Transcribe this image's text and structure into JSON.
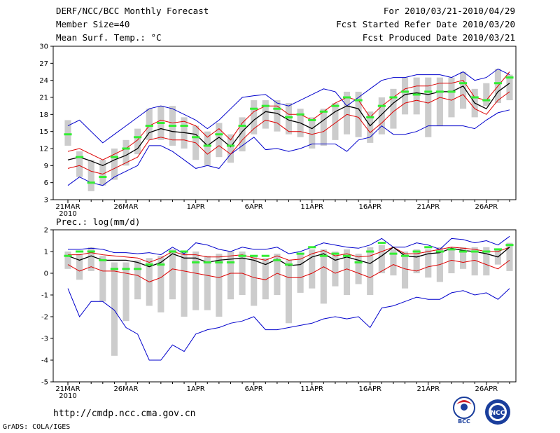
{
  "header": {
    "title": "DERF/NCC/BCC Monthly Forecast",
    "member": "Member Size=40",
    "variable": "Mean Surf. Temp.: °C",
    "period": "For 2010/03/21-2010/04/29",
    "started": "Fcst Started Refer Date 2010/03/20",
    "produced": "Fcst Produced Date 2010/03/21"
  },
  "footer": {
    "url": "http://cmdp.ncc.cma.gov.cn",
    "credit": "GrADS: COLA/IGES",
    "logo_left_text": "BCC",
    "logo_right_text": "NCC"
  },
  "colors": {
    "envelope": "#0000cc",
    "spread": "#dd0000",
    "mean": "#000000",
    "observed": "#33ee33",
    "bar": "#cccccc"
  },
  "chart_data": [
    {
      "type": "line",
      "title": "Mean Surf. Temp.: °C",
      "x_labels": [
        "21MAR",
        "26MAR",
        "1APR",
        "6APR",
        "11APR",
        "16APR",
        "21APR",
        "26APR"
      ],
      "x_label_days": [
        0,
        5,
        11,
        16,
        21,
        26,
        31,
        36
      ],
      "year_label": "2010",
      "ylim": [
        3,
        30
      ],
      "yticks": [
        3,
        6,
        9,
        12,
        15,
        18,
        21,
        24,
        27,
        30
      ],
      "days": 39,
      "series": [
        {
          "name": "ensemble max",
          "values": [
            16,
            17,
            15,
            13,
            14.5,
            16,
            17.5,
            19,
            19.5,
            19,
            18,
            17,
            15.5,
            17,
            19,
            21,
            21.3,
            21.5,
            20,
            19.5,
            20.5,
            21.5,
            22.5,
            22,
            19.5,
            21,
            22.5,
            24,
            24.5,
            24.5,
            25,
            25,
            25,
            24.5,
            25.5,
            24,
            24.5,
            26,
            25
          ]
        },
        {
          "name": "ensemble min",
          "values": [
            5.5,
            7,
            6,
            5.5,
            7,
            8,
            9,
            12.5,
            12.5,
            11.5,
            10,
            8.5,
            9,
            8.5,
            11,
            12.5,
            14,
            11.8,
            12,
            11.5,
            12,
            12.8,
            12.8,
            12.8,
            11.5,
            13.5,
            14,
            16,
            14.5,
            14.5,
            15,
            16,
            16,
            16,
            16,
            15.5,
            17,
            18.3,
            18.8
          ]
        },
        {
          "name": "mean + spread",
          "values": [
            11.5,
            12,
            11,
            10,
            11,
            12,
            13.5,
            16,
            17,
            16.5,
            16.8,
            16,
            14,
            15.5,
            13.5,
            16.5,
            18.5,
            19.5,
            19.5,
            18,
            18,
            17,
            18.5,
            20,
            21,
            20.5,
            17.5,
            19.5,
            21,
            22.5,
            23,
            23,
            23.5,
            23.5,
            24,
            21,
            20.5,
            23,
            25.5
          ]
        },
        {
          "name": "ensemble mean",
          "values": [
            10,
            10.5,
            9.8,
            9,
            10,
            10.8,
            12,
            14.8,
            15.5,
            15,
            14.8,
            14.5,
            12.5,
            14,
            12.3,
            15,
            17,
            18.5,
            18.2,
            17,
            16.5,
            15.5,
            17,
            18.5,
            19.5,
            19,
            16,
            18,
            20,
            21.5,
            21.8,
            21.5,
            22,
            22,
            23,
            20,
            19,
            22,
            23.5
          ]
        },
        {
          "name": "mean - spread",
          "values": [
            8.5,
            9,
            8,
            7.5,
            8.5,
            9.5,
            10.5,
            13.5,
            14,
            13.5,
            13.5,
            13,
            11,
            12.5,
            11,
            13.5,
            15.5,
            17,
            16.5,
            15,
            15,
            14.5,
            15,
            16.5,
            18,
            17.5,
            14.8,
            16.5,
            18.5,
            20,
            20.5,
            20,
            21,
            20.5,
            21.5,
            19,
            18,
            20.5,
            22
          ]
        },
        {
          "name": "observed",
          "values": [
            14.5,
            10.5,
            6,
            7,
            10.5,
            12,
            14,
            16,
            16.5,
            16,
            16,
            14,
            12.5,
            14.5,
            12.5,
            16,
            19,
            19.5,
            19,
            17.5,
            18,
            17,
            18.5,
            19.5,
            21,
            20.5,
            17.5,
            19.5,
            21,
            22,
            21.5,
            22,
            22,
            22,
            23.5,
            21,
            20.5,
            23.5,
            24.5
          ]
        }
      ],
      "bars": [
        [
          12.5,
          17
        ],
        [
          7,
          11.5
        ],
        [
          4.5,
          10
        ],
        [
          5.5,
          10
        ],
        [
          6.5,
          12
        ],
        [
          9,
          13.5
        ],
        [
          11,
          15.5
        ],
        [
          13.5,
          19
        ],
        [
          13.5,
          19.5
        ],
        [
          12.5,
          19.5
        ],
        [
          12,
          17.5
        ],
        [
          10,
          16
        ],
        [
          9,
          15
        ],
        [
          10.5,
          16.5
        ],
        [
          9.5,
          14.5
        ],
        [
          11.5,
          17.5
        ],
        [
          14.5,
          20.5
        ],
        [
          15.5,
          20.5
        ],
        [
          15,
          20.5
        ],
        [
          14.5,
          20
        ],
        [
          14,
          19
        ],
        [
          12,
          17.5
        ],
        [
          12.5,
          19
        ],
        [
          13.5,
          20
        ],
        [
          14.5,
          22
        ],
        [
          14,
          22
        ],
        [
          13,
          18.5
        ],
        [
          14.5,
          21
        ],
        [
          15.5,
          22.5
        ],
        [
          18,
          24.5
        ],
        [
          18,
          24.5
        ],
        [
          14,
          24.5
        ],
        [
          16,
          24.5
        ],
        [
          17.5,
          24.5
        ],
        [
          19,
          25.5
        ],
        [
          17.5,
          22.5
        ],
        [
          19.5,
          23.5
        ],
        [
          20,
          26
        ],
        [
          20.5,
          25
        ]
      ]
    },
    {
      "type": "line",
      "title": "Prec.: log(mm/d)",
      "x_labels": [
        "21MAR",
        "26MAR",
        "1APR",
        "6APR",
        "11APR",
        "16APR",
        "21APR",
        "26APR"
      ],
      "x_label_days": [
        0,
        5,
        11,
        16,
        21,
        26,
        31,
        36
      ],
      "year_label": "2010",
      "ylim": [
        -5,
        2
      ],
      "yticks": [
        -5,
        -4,
        -3,
        -2,
        -1,
        0,
        1,
        2
      ],
      "days": 39,
      "series": [
        {
          "name": "ensemble max",
          "values": [
            1.1,
            1.1,
            1.15,
            1.1,
            0.95,
            0.95,
            0.9,
            0.95,
            0.85,
            1.2,
            0.9,
            1.4,
            1.3,
            1.1,
            1.0,
            1.2,
            1.1,
            1.1,
            1.2,
            0.9,
            1.0,
            1.2,
            1.4,
            1.3,
            1.2,
            1.15,
            1.3,
            1.6,
            1.2,
            1.2,
            1.4,
            1.3,
            1.1,
            1.6,
            1.55,
            1.4,
            1.5,
            1.3,
            1.7
          ]
        },
        {
          "name": "ensemble min",
          "values": [
            -0.7,
            -2.0,
            -1.3,
            -1.3,
            -1.7,
            -2.5,
            -2.8,
            -4.0,
            -4.0,
            -3.3,
            -3.6,
            -2.8,
            -2.6,
            -2.5,
            -2.3,
            -2.2,
            -2.0,
            -2.6,
            -2.6,
            -2.5,
            -2.4,
            -2.3,
            -2.1,
            -2.0,
            -2.1,
            -2.0,
            -2.5,
            -1.6,
            -1.5,
            -1.3,
            -1.1,
            -1.2,
            -1.2,
            -0.9,
            -0.8,
            -1.0,
            -0.9,
            -1.2,
            -0.7
          ]
        },
        {
          "name": "mean + spread",
          "values": [
            0.85,
            0.85,
            0.95,
            0.85,
            0.8,
            0.75,
            0.7,
            0.5,
            0.7,
            1.0,
            0.85,
            0.85,
            0.75,
            0.75,
            0.8,
            0.85,
            0.7,
            0.6,
            0.8,
            0.6,
            0.65,
            0.9,
            1.05,
            0.8,
            0.9,
            0.75,
            0.8,
            1.0,
            1.2,
            0.9,
            0.9,
            1.0,
            1.1,
            1.2,
            1.15,
            1.1,
            1.0,
            1.0,
            1.2
          ]
        },
        {
          "name": "ensemble mean",
          "values": [
            0.8,
            0.6,
            0.8,
            0.6,
            0.6,
            0.6,
            0.5,
            0.3,
            0.5,
            0.9,
            0.7,
            0.7,
            0.5,
            0.6,
            0.65,
            0.7,
            0.6,
            0.4,
            0.65,
            0.35,
            0.4,
            0.75,
            0.9,
            0.6,
            0.75,
            0.6,
            0.45,
            0.8,
            1.2,
            0.8,
            0.75,
            0.9,
            0.95,
            1.15,
            1.05,
            1.0,
            0.9,
            0.75,
            1.2
          ]
        },
        {
          "name": "mean - spread",
          "values": [
            0.4,
            0.1,
            0.3,
            0.1,
            0.1,
            0.0,
            -0.1,
            -0.4,
            -0.2,
            0.2,
            0.1,
            0.0,
            -0.1,
            -0.2,
            0.0,
            0.0,
            -0.2,
            -0.3,
            0.0,
            -0.2,
            -0.2,
            0.0,
            0.3,
            0.0,
            0.2,
            0.0,
            -0.2,
            0.1,
            0.4,
            0.2,
            0.1,
            0.3,
            0.4,
            0.6,
            0.5,
            0.6,
            0.4,
            0.2,
            0.6
          ]
        },
        {
          "name": "observed",
          "values": [
            0.8,
            1.0,
            1.0,
            0.6,
            0.2,
            0.2,
            0.2,
            0.4,
            0.4,
            1.0,
            1.0,
            0.5,
            0.5,
            0.5,
            0.5,
            0.8,
            0.8,
            0.8,
            0.6,
            0.4,
            0.9,
            1.2,
            0.8,
            0.9,
            0.8,
            0.5,
            1.0,
            1.4,
            0.9,
            0.8,
            1.0,
            1.2,
            1.0,
            1.1,
            1.0,
            1.0,
            1.0,
            1.1,
            1.3
          ]
        }
      ],
      "bars": [
        [
          0.2,
          1.0
        ],
        [
          -0.3,
          0.9
        ],
        [
          0.1,
          1.2
        ],
        [
          -1.3,
          0.8
        ],
        [
          -3.8,
          0.5
        ],
        [
          -2.2,
          0.5
        ],
        [
          -1.2,
          0.6
        ],
        [
          -1.5,
          0.7
        ],
        [
          -1.8,
          0.8
        ],
        [
          -1.2,
          1.1
        ],
        [
          -2.0,
          1.0
        ],
        [
          -1.7,
          1.0
        ],
        [
          -1.7,
          0.8
        ],
        [
          -2.0,
          0.9
        ],
        [
          -1.2,
          1.0
        ],
        [
          -1.0,
          1.0
        ],
        [
          -1.5,
          0.8
        ],
        [
          -1.2,
          0.7
        ],
        [
          -1.0,
          0.9
        ],
        [
          -2.3,
          0.6
        ],
        [
          -0.9,
          0.9
        ],
        [
          -0.7,
          1.1
        ],
        [
          -1.4,
          1.1
        ],
        [
          -0.6,
          1.0
        ],
        [
          -1.0,
          1.1
        ],
        [
          -0.5,
          0.9
        ],
        [
          -1.0,
          1.2
        ],
        [
          0.0,
          1.3
        ],
        [
          -0.1,
          1.1
        ],
        [
          -0.7,
          1.0
        ],
        [
          0.0,
          1.1
        ],
        [
          -0.2,
          1.1
        ],
        [
          -0.4,
          1.2
        ],
        [
          0.0,
          1.2
        ],
        [
          0.2,
          1.2
        ],
        [
          -0.1,
          1.2
        ],
        [
          -0.1,
          1.2
        ],
        [
          0.4,
          1.1
        ],
        [
          0.1,
          1.4
        ]
      ]
    }
  ]
}
